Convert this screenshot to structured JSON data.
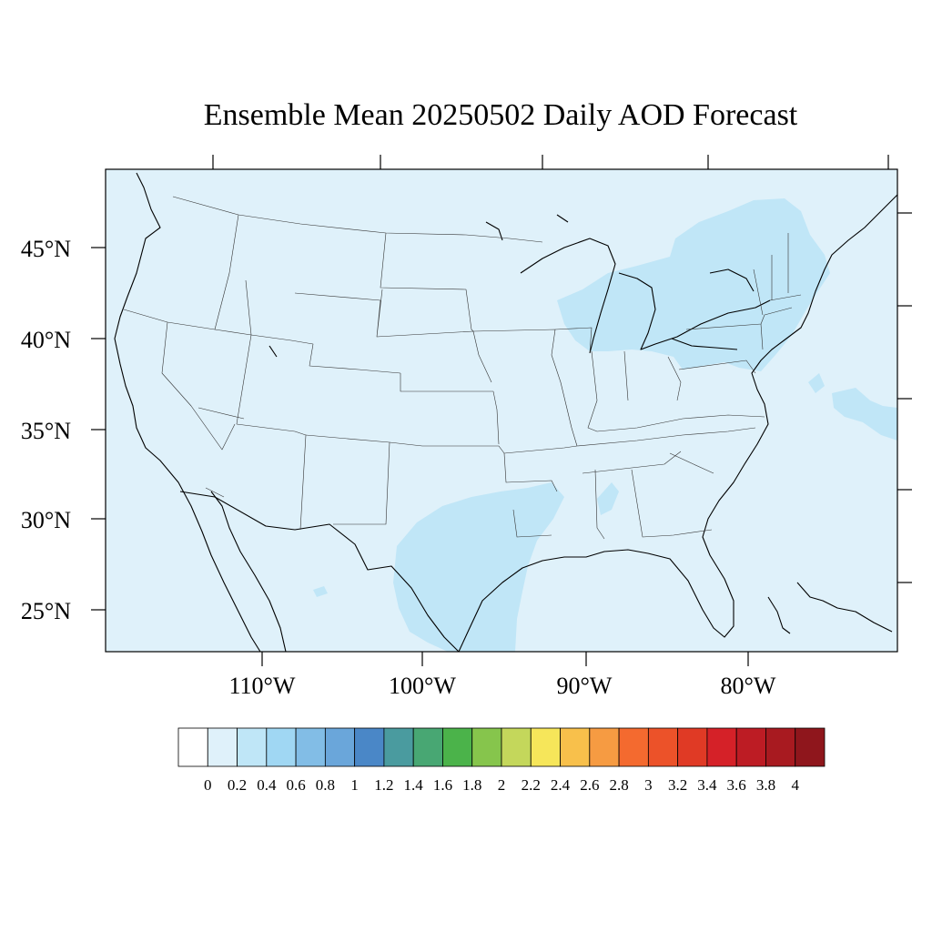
{
  "title": "Ensemble Mean 20250502 Daily AOD Forecast",
  "map": {
    "projection": "lambert-conformal",
    "region": "Contiguous United States",
    "background_fill": "#dff1fa",
    "elevated_fill": "#c0e6f7",
    "outline_color": "#000000",
    "lat_labels": [
      "45°N",
      "40°N",
      "35°N",
      "30°N",
      "25°N"
    ],
    "lon_labels": [
      "110°W",
      "100°W",
      "90°W",
      "80°W"
    ]
  },
  "chart_data": {
    "type": "heatmap",
    "variable": "AOD",
    "field_summary": [
      {
        "area": "most of domain",
        "bin": "0–0.2"
      },
      {
        "area": "Great Lakes / Northeast",
        "bin": "0.2–0.4"
      },
      {
        "area": "Texas / Lower Mississippi",
        "bin": "0.2–0.4"
      },
      {
        "area": "western Atlantic offshore",
        "bin": "0.2–0.4"
      }
    ]
  },
  "colorbar": {
    "colors": [
      "#ffffff",
      "#dff1fa",
      "#bfe6f7",
      "#a0d7f3",
      "#82bde6",
      "#6aa6da",
      "#4a87c7",
      "#4a9b9f",
      "#48a773",
      "#4bb34a",
      "#86c54c",
      "#c4d75b",
      "#f6e65a",
      "#f8c04b",
      "#f69b42",
      "#f46a2f",
      "#ec5229",
      "#e03a25",
      "#d52128",
      "#bd1c24",
      "#a81a20",
      "#8f161c"
    ],
    "labels": [
      "0",
      "0.2",
      "0.4",
      "0.6",
      "0.8",
      "1",
      "1.2",
      "1.4",
      "1.6",
      "1.8",
      "2",
      "2.2",
      "2.4",
      "2.6",
      "2.8",
      "3",
      "3.2",
      "3.4",
      "3.6",
      "3.8",
      "4"
    ]
  }
}
